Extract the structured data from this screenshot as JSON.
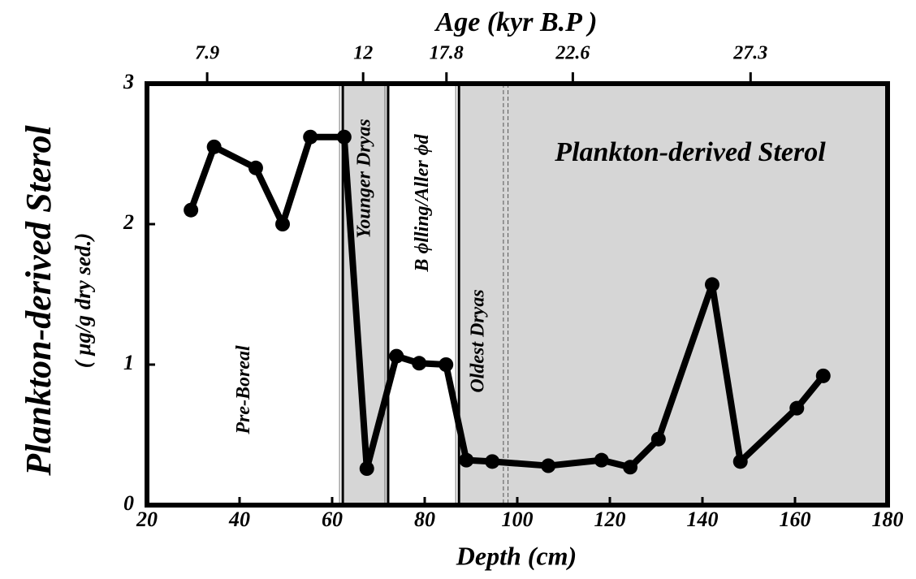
{
  "chart_data": {
    "type": "line",
    "title": "Age   (kyr B.P )",
    "xlabel": "Depth (cm)",
    "ylabel": "Plankton-derived Sterol",
    "ylabel2": "( μg/g dry sed.)",
    "annotation": "Plankton-derived Sterol",
    "xlim": [
      20,
      180
    ],
    "xticks": [
      20,
      40,
      60,
      80,
      100,
      120,
      140,
      160,
      180
    ],
    "ylim": [
      0,
      3
    ],
    "yticks": [
      0,
      1,
      2,
      3
    ],
    "age_ticks": [
      {
        "value": 33,
        "label": "7.9"
      },
      {
        "value": 66.7,
        "label": "12"
      },
      {
        "value": 84.7,
        "label": "17.8"
      },
      {
        "value": 112,
        "label": "22.6"
      },
      {
        "value": 150.4,
        "label": "27.3"
      }
    ],
    "zones": [
      {
        "label": "Pre-Boreal",
        "range": [
          20,
          62.3
        ],
        "shaded": false
      },
      {
        "label": "Younger Dryas",
        "range": [
          62.3,
          72.1
        ],
        "shaded": true
      },
      {
        "label": "B ϕlling/Aller ϕd",
        "range": [
          72.1,
          87.4
        ],
        "shaded": false
      },
      {
        "label": "Oldest Dryas",
        "range": [
          87.4,
          180
        ],
        "shaded": true
      }
    ],
    "boundaries": [
      62.3,
      72.1,
      87.4
    ],
    "dashed_lines": [
      97,
      98
    ],
    "color": "#000000",
    "shade_color": "#d6d6d6",
    "x": [
      29.5,
      34.5,
      43.5,
      49.3,
      55.3,
      62.6,
      67.5,
      73.9,
      78.8,
      84.6,
      89,
      94.6,
      106.7,
      118.2,
      124.4,
      130.5,
      142.1,
      148.2,
      160.4,
      166.1
    ],
    "values": [
      2.1,
      2.55,
      2.4,
      2.0,
      2.62,
      2.62,
      0.26,
      1.06,
      1.01,
      1.0,
      0.32,
      0.31,
      0.28,
      0.32,
      0.27,
      0.47,
      1.57,
      0.31,
      0.69,
      0.92
    ]
  }
}
